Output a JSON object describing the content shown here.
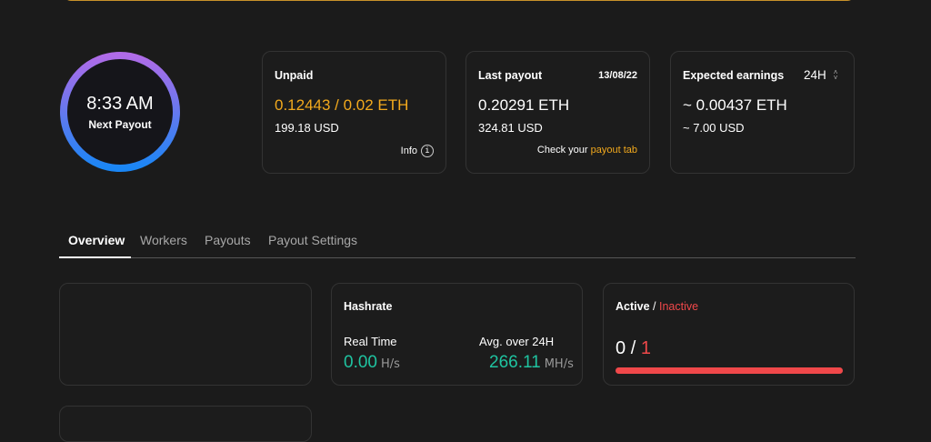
{
  "colors": {
    "accent": "#f2a91d",
    "inactive": "#f0484a",
    "hashrate": "#1fc3a0",
    "ring_start": "#b06be8",
    "ring_end": "#1a86f5"
  },
  "next_payout": {
    "time": "8:33 AM",
    "label": "Next Payout"
  },
  "unpaid": {
    "title": "Unpaid",
    "value": "0.12443 / 0.02 ETH",
    "usd": "199.18 USD",
    "info": "Info",
    "info_icon": "info-circle-icon"
  },
  "last_payout": {
    "title": "Last payout",
    "date": "13/08/22",
    "value": "0.20291 ETH",
    "usd": "324.81 USD",
    "check_prefix": "Check your",
    "check_link": "payout tab"
  },
  "expected": {
    "title": "Expected earnings",
    "period": "24H",
    "value": "~ 0.00437 ETH",
    "usd": "~ 7.00 USD"
  },
  "tabs": [
    {
      "label": "Overview",
      "active": true
    },
    {
      "label": "Workers"
    },
    {
      "label": "Payouts"
    },
    {
      "label": "Payout Settings"
    }
  ],
  "hashrate": {
    "title": "Hashrate",
    "realtime_label": "Real Time",
    "realtime_value": "0.00",
    "realtime_unit": "H/s",
    "avg_label": "Avg. over 24H",
    "avg_value": "266.11",
    "avg_unit": "MH/s"
  },
  "workers": {
    "active_label": "Active",
    "sep": "/",
    "inactive_label": "Inactive",
    "active": "0",
    "inactive": "1",
    "inactive_fraction": 1.0
  }
}
